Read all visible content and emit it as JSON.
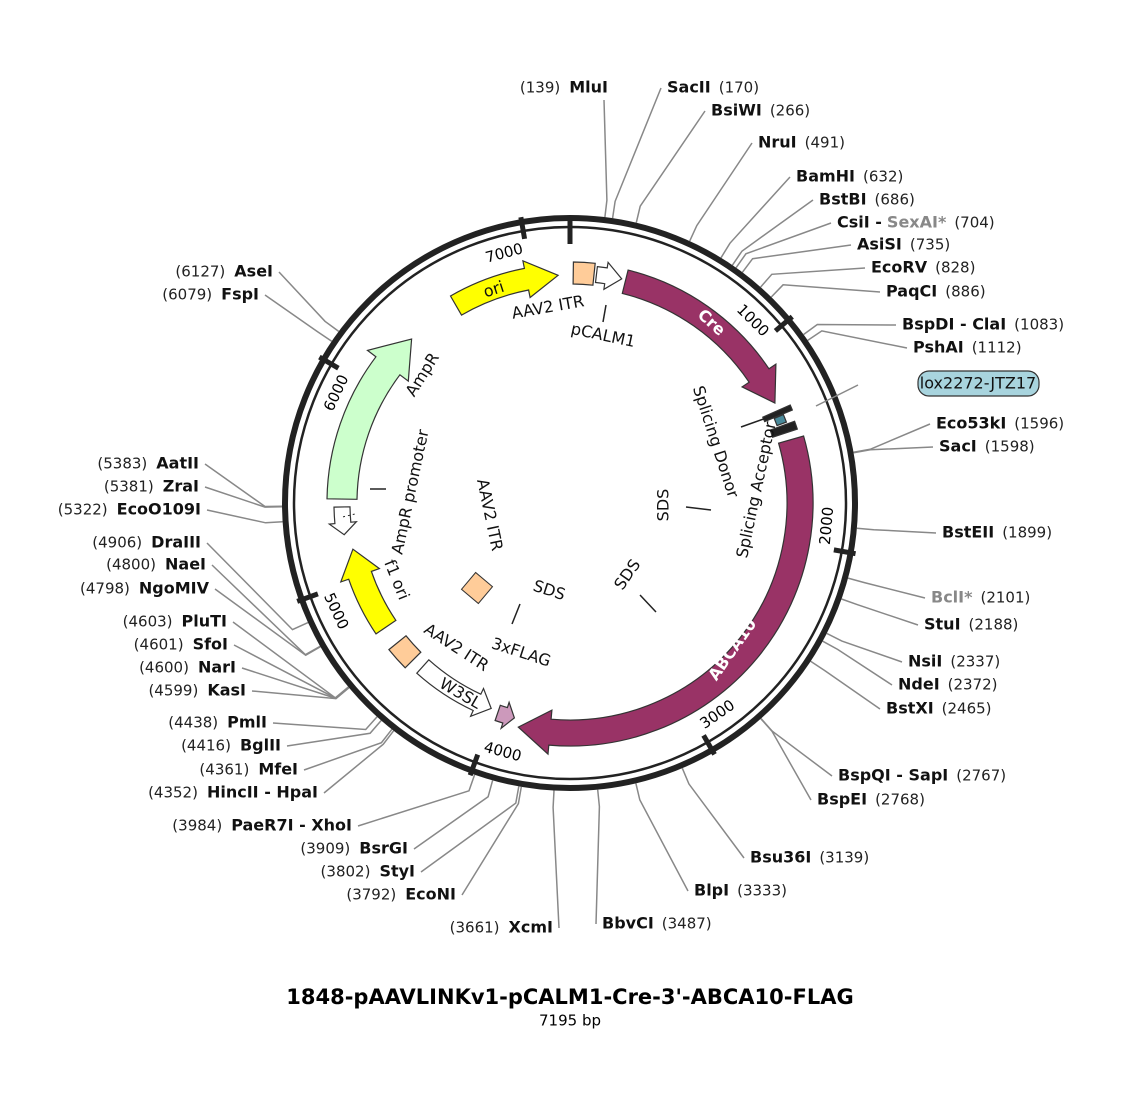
{
  "title": "1848-pAAVLINKv1-pCALM1-Cre-3'-ABCA10-FLAG",
  "subtitle": "7195 bp",
  "ticks": [
    1000,
    2000,
    3000,
    4000,
    5000,
    6000,
    7000
  ],
  "enzymes": [
    {
      "name": "MluI",
      "pos": "(139)"
    },
    {
      "name": "SacII",
      "pos": "(170)"
    },
    {
      "name": "BsiWI",
      "pos": "(266)"
    },
    {
      "name": "NruI",
      "pos": "(491)"
    },
    {
      "name": "BamHI",
      "pos": "(632)"
    },
    {
      "name": "BstBI",
      "pos": "(686)"
    },
    {
      "name": "CsiI -",
      "alias": "SexAI*",
      "pos": "(704)"
    },
    {
      "name": "AsiSI",
      "pos": "(735)"
    },
    {
      "name": "EcoRV",
      "pos": "(828)"
    },
    {
      "name": "PaqCI",
      "pos": "(886)"
    },
    {
      "name": "BspDI - ClaI",
      "pos": "(1083)"
    },
    {
      "name": "PshAI",
      "pos": "(1112)"
    },
    {
      "name": "Eco53kI",
      "pos": "(1596)"
    },
    {
      "name": "SacI",
      "pos": "(1598)"
    },
    {
      "name": "BstEII",
      "pos": "(1899)"
    },
    {
      "name": "BclI*",
      "muted": true,
      "pos": "(2101)"
    },
    {
      "name": "StuI",
      "pos": "(2188)"
    },
    {
      "name": "NsiI",
      "pos": "(2337)"
    },
    {
      "name": "NdeI",
      "pos": "(2372)"
    },
    {
      "name": "BstXI",
      "pos": "(2465)"
    },
    {
      "name": "BspQI - SapI",
      "pos": "(2767)"
    },
    {
      "name": "BspEI",
      "pos": "(2768)"
    },
    {
      "name": "Bsu36I",
      "pos": "(3139)"
    },
    {
      "name": "BlpI",
      "pos": "(3333)"
    },
    {
      "name": "BbvCI",
      "pos": "(3487)"
    },
    {
      "name": "XcmI",
      "pos": "(3661)"
    },
    {
      "name": "EcoNI",
      "pos": "(3792)"
    },
    {
      "name": "StyI",
      "pos": "(3802)"
    },
    {
      "name": "BsrGI",
      "pos": "(3909)"
    },
    {
      "name": "PaeR7I - XhoI",
      "pos": "(3984)"
    },
    {
      "name": "HincII - HpaI",
      "pos": "(4352)"
    },
    {
      "name": "MfeI",
      "pos": "(4361)"
    },
    {
      "name": "BglII",
      "pos": "(4416)"
    },
    {
      "name": "PmlI",
      "pos": "(4438)"
    },
    {
      "name": "KasI",
      "pos": "(4599)"
    },
    {
      "name": "NarI",
      "pos": "(4600)"
    },
    {
      "name": "SfoI",
      "pos": "(4601)"
    },
    {
      "name": "PluTI",
      "pos": "(4603)"
    },
    {
      "name": "NgoMIV",
      "pos": "(4798)"
    },
    {
      "name": "NaeI",
      "pos": "(4800)"
    },
    {
      "name": "DraIII",
      "pos": "(4906)"
    },
    {
      "name": "EcoO109I",
      "pos": "(5322)"
    },
    {
      "name": "ZraI",
      "pos": "(5381)"
    },
    {
      "name": "AatII",
      "pos": "(5383)"
    },
    {
      "name": "FspI",
      "pos": "(6079)"
    },
    {
      "name": "AseI",
      "pos": "(6127)"
    }
  ],
  "features": [
    {
      "label": "ori"
    },
    {
      "label": "AAV2 ITR"
    },
    {
      "label": "pCALM1"
    },
    {
      "label": "Cre"
    },
    {
      "label": "lox2272-JTZ17"
    },
    {
      "label": "Splicing Donor"
    },
    {
      "label": "Splicing Acceptor"
    },
    {
      "label": "SDS"
    },
    {
      "label": "SDS"
    },
    {
      "label": "SDS"
    },
    {
      "label": "AAV2 ITR"
    },
    {
      "label": "ABCA10"
    },
    {
      "label": "3xFLAG"
    },
    {
      "label": "AAV2 ITR"
    },
    {
      "label": "W3SL"
    },
    {
      "label": "f1 ori"
    },
    {
      "label": "AmpR promoter"
    },
    {
      "label": "AmpR"
    }
  ]
}
